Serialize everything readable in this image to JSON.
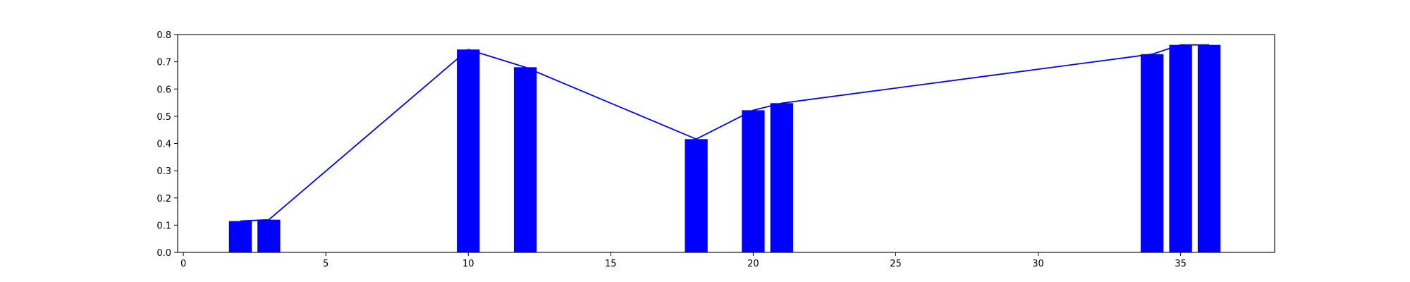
{
  "chart_data": {
    "type": "bar",
    "title": "",
    "xlabel": "",
    "ylabel": "",
    "xlim": [
      -0.2,
      38.3
    ],
    "ylim": [
      0,
      0.8
    ],
    "grid": false,
    "xticks": [
      "0",
      "5",
      "10",
      "15",
      "20",
      "25",
      "30",
      "35"
    ],
    "xtick_values": [
      0,
      5,
      10,
      15,
      20,
      25,
      30,
      35
    ],
    "yticks": [
      "0.0",
      "0.1",
      "0.2",
      "0.3",
      "0.4",
      "0.5",
      "0.6",
      "0.7",
      "0.8"
    ],
    "ytick_values": [
      0.0,
      0.1,
      0.2,
      0.3,
      0.4,
      0.5,
      0.6,
      0.7,
      0.8
    ],
    "bar_width": 0.8,
    "bar_color": "#0000ff",
    "line_color": "#0000ff",
    "bars": {
      "x": [
        2,
        3,
        10,
        12,
        18,
        20,
        21,
        34,
        35,
        36
      ],
      "values": [
        0.115,
        0.12,
        0.745,
        0.68,
        0.416,
        0.522,
        0.548,
        0.728,
        0.762,
        0.762
      ]
    },
    "line": {
      "x": [
        2,
        3,
        10,
        12,
        18,
        20,
        21,
        34,
        35,
        36
      ],
      "values": [
        0.115,
        0.12,
        0.745,
        0.68,
        0.416,
        0.522,
        0.548,
        0.728,
        0.762,
        0.762
      ]
    }
  }
}
